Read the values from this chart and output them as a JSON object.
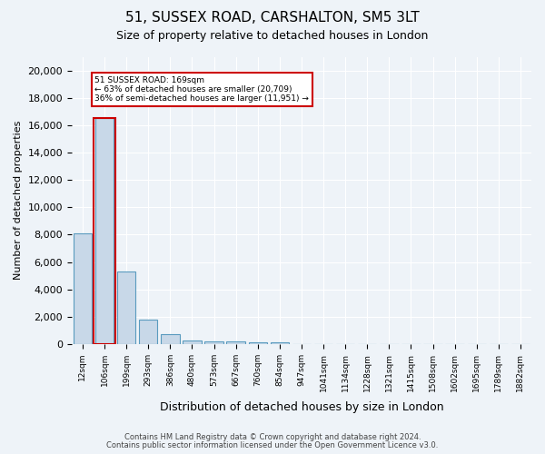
{
  "title_line1": "51, SUSSEX ROAD, CARSHALTON, SM5 3LT",
  "title_line2": "Size of property relative to detached houses in London",
  "xlabel": "Distribution of detached houses by size in London",
  "ylabel": "Number of detached properties",
  "bin_labels": [
    "12sqm",
    "106sqm",
    "199sqm",
    "293sqm",
    "386sqm",
    "480sqm",
    "573sqm",
    "667sqm",
    "760sqm",
    "854sqm",
    "947sqm",
    "1041sqm",
    "1134sqm",
    "1228sqm",
    "1321sqm",
    "1415sqm",
    "1508sqm",
    "1602sqm",
    "1695sqm",
    "1789sqm",
    "1882sqm"
  ],
  "bar_heights": [
    8100,
    16500,
    5300,
    1800,
    700,
    300,
    220,
    180,
    160,
    150,
    0,
    0,
    0,
    0,
    0,
    0,
    0,
    0,
    0,
    0,
    0
  ],
  "bar_color": "#c8d8e8",
  "bar_edge_color": "#5a9bbf",
  "annotation_title": "51 SUSSEX ROAD: 169sqm",
  "annotation_line2": "← 63% of detached houses are smaller (20,709)",
  "annotation_line3": "36% of semi-detached houses are larger (11,951) →",
  "annotation_box_color": "#ffffff",
  "annotation_box_edge": "#cc0000",
  "vline_color": "#cc0000",
  "ylim": [
    0,
    21000
  ],
  "yticks": [
    0,
    2000,
    4000,
    6000,
    8000,
    10000,
    12000,
    14000,
    16000,
    18000,
    20000
  ],
  "footer_line1": "Contains HM Land Registry data © Crown copyright and database right 2024.",
  "footer_line2": "Contains public sector information licensed under the Open Government Licence v3.0.",
  "bg_color": "#eef3f8",
  "plot_bg_color": "#eef3f8"
}
